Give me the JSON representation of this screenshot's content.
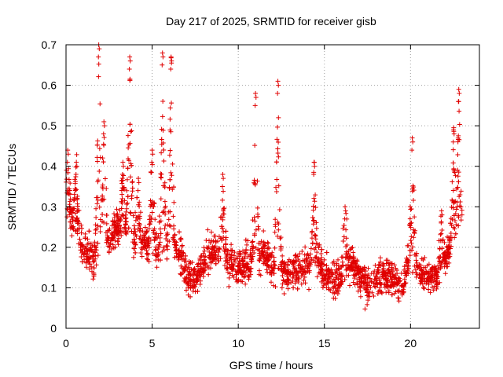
{
  "chart_data": {
    "type": "scatter",
    "title": "Day 217 of 2025, SRMTID for receiver gisb",
    "xlabel": "GPS time / hours",
    "ylabel": "SRMTID / TECUs",
    "xlim": [
      0,
      24
    ],
    "ylim": [
      0,
      0.7
    ],
    "x_ticks": [
      0,
      5,
      10,
      15,
      20
    ],
    "x_tick_labels": [
      "0",
      "5",
      "10",
      "15",
      "20"
    ],
    "y_ticks": [
      0,
      0.1,
      0.2,
      0.3,
      0.4,
      0.5,
      0.6,
      0.7
    ],
    "y_tick_labels": [
      "0",
      "0.1",
      "0.2",
      "0.3",
      "0.4",
      "0.5",
      "0.6",
      "0.7"
    ],
    "grid": true,
    "marker": "+",
    "color": "#e00000",
    "x_range_data": [
      0,
      23
    ],
    "baseline_profile": [
      {
        "x": 0.0,
        "y": 0.28
      },
      {
        "x": 0.5,
        "y": 0.26
      },
      {
        "x": 1.0,
        "y": 0.19
      },
      {
        "x": 1.5,
        "y": 0.17
      },
      {
        "x": 2.0,
        "y": 0.2
      },
      {
        "x": 2.5,
        "y": 0.22
      },
      {
        "x": 3.0,
        "y": 0.25
      },
      {
        "x": 3.5,
        "y": 0.24
      },
      {
        "x": 4.0,
        "y": 0.22
      },
      {
        "x": 4.5,
        "y": 0.21
      },
      {
        "x": 5.0,
        "y": 0.2
      },
      {
        "x": 5.5,
        "y": 0.19
      },
      {
        "x": 6.0,
        "y": 0.22
      },
      {
        "x": 6.5,
        "y": 0.2
      },
      {
        "x": 7.0,
        "y": 0.13
      },
      {
        "x": 7.5,
        "y": 0.12
      },
      {
        "x": 8.0,
        "y": 0.16
      },
      {
        "x": 8.5,
        "y": 0.2
      },
      {
        "x": 9.0,
        "y": 0.19
      },
      {
        "x": 9.5,
        "y": 0.17
      },
      {
        "x": 10.0,
        "y": 0.15
      },
      {
        "x": 10.5,
        "y": 0.16
      },
      {
        "x": 11.0,
        "y": 0.17
      },
      {
        "x": 11.5,
        "y": 0.18
      },
      {
        "x": 12.0,
        "y": 0.15
      },
      {
        "x": 12.5,
        "y": 0.14
      },
      {
        "x": 13.0,
        "y": 0.14
      },
      {
        "x": 13.5,
        "y": 0.15
      },
      {
        "x": 14.0,
        "y": 0.16
      },
      {
        "x": 14.5,
        "y": 0.17
      },
      {
        "x": 15.0,
        "y": 0.14
      },
      {
        "x": 15.5,
        "y": 0.12
      },
      {
        "x": 16.0,
        "y": 0.13
      },
      {
        "x": 16.5,
        "y": 0.16
      },
      {
        "x": 17.0,
        "y": 0.13
      },
      {
        "x": 17.5,
        "y": 0.11
      },
      {
        "x": 18.0,
        "y": 0.12
      },
      {
        "x": 18.5,
        "y": 0.13
      },
      {
        "x": 19.0,
        "y": 0.12
      },
      {
        "x": 19.5,
        "y": 0.1
      },
      {
        "x": 20.0,
        "y": 0.17
      },
      {
        "x": 20.5,
        "y": 0.15
      },
      {
        "x": 21.0,
        "y": 0.12
      },
      {
        "x": 21.5,
        "y": 0.13
      },
      {
        "x": 22.0,
        "y": 0.17
      },
      {
        "x": 22.5,
        "y": 0.22
      },
      {
        "x": 23.0,
        "y": 0.25
      }
    ],
    "spikes": [
      {
        "x": 0.1,
        "peak": 0.44
      },
      {
        "x": 0.6,
        "peak": 0.41
      },
      {
        "x": 1.9,
        "peak": 0.7
      },
      {
        "x": 2.2,
        "peak": 0.51
      },
      {
        "x": 3.3,
        "peak": 0.41
      },
      {
        "x": 3.7,
        "peak": 0.67
      },
      {
        "x": 4.2,
        "peak": 0.37
      },
      {
        "x": 5.0,
        "peak": 0.44
      },
      {
        "x": 5.6,
        "peak": 0.68
      },
      {
        "x": 6.1,
        "peak": 0.67
      },
      {
        "x": 9.1,
        "peak": 0.38
      },
      {
        "x": 11.0,
        "peak": 0.58
      },
      {
        "x": 12.3,
        "peak": 0.61
      },
      {
        "x": 14.4,
        "peak": 0.41
      },
      {
        "x": 16.2,
        "peak": 0.3
      },
      {
        "x": 20.1,
        "peak": 0.47
      },
      {
        "x": 21.8,
        "peak": 0.29
      },
      {
        "x": 22.8,
        "peak": 0.59
      },
      {
        "x": 22.5,
        "peak": 0.49
      }
    ]
  }
}
